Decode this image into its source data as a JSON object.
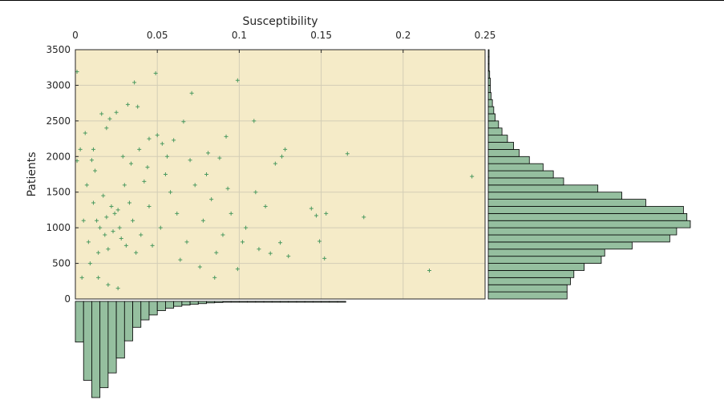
{
  "chart_data": {
    "type": "scatter",
    "title": "",
    "xlabel": "Susceptibility",
    "ylabel": "Patients",
    "xlim": [
      0,
      0.25
    ],
    "ylim": [
      0,
      3500
    ],
    "x_ticks": [
      "0",
      "0.05",
      "0.1",
      "0.15",
      "0.2",
      "0.25"
    ],
    "y_ticks": [
      "0",
      "500",
      "1000",
      "1500",
      "2000",
      "2500",
      "3000",
      "3500"
    ],
    "x_axis_position": "top",
    "grid": true,
    "legend": "none",
    "marker": "+",
    "colors": {
      "background": "#f5ebc8",
      "marker": "#4c9a60",
      "bar_fill": "#95bf9f",
      "bar_edge": "#000000",
      "grid": "#d3cdb6"
    },
    "points": [
      [
        0.001,
        3190
      ],
      [
        0.036,
        3040
      ],
      [
        0.049,
        3170
      ],
      [
        0.071,
        2890
      ],
      [
        0.099,
        3070
      ],
      [
        0.109,
        2500
      ],
      [
        0.166,
        2040
      ],
      [
        0.128,
        2100
      ],
      [
        0.242,
        1720
      ],
      [
        0.216,
        400
      ],
      [
        0.152,
        570
      ],
      [
        0.149,
        810
      ],
      [
        0.176,
        1150
      ],
      [
        0.153,
        1200
      ],
      [
        0.147,
        1170
      ],
      [
        0.144,
        1270
      ],
      [
        0.125,
        790
      ],
      [
        0.119,
        640
      ],
      [
        0.099,
        420
      ],
      [
        0.085,
        300
      ],
      [
        0.13,
        600
      ],
      [
        0.122,
        1900
      ],
      [
        0.126,
        2000
      ],
      [
        0.088,
        1980
      ],
      [
        0.081,
        2050
      ],
      [
        0.092,
        2280
      ],
      [
        0.066,
        2490
      ],
      [
        0.06,
        2230
      ],
      [
        0.053,
        2180
      ],
      [
        0.045,
        2250
      ],
      [
        0.038,
        2700
      ],
      [
        0.032,
        2730
      ],
      [
        0.025,
        2620
      ],
      [
        0.019,
        2400
      ],
      [
        0.016,
        2600
      ],
      [
        0.021,
        2530
      ],
      [
        0.006,
        2330
      ],
      [
        0.01,
        1950
      ],
      [
        0.001,
        1940
      ],
      [
        0.003,
        2100
      ],
      [
        0.007,
        1600
      ],
      [
        0.013,
        1100
      ],
      [
        0.018,
        900
      ],
      [
        0.022,
        1300
      ],
      [
        0.027,
        1000
      ],
      [
        0.031,
        750
      ],
      [
        0.014,
        650
      ],
      [
        0.009,
        500
      ],
      [
        0.004,
        300
      ],
      [
        0.017,
        1450
      ],
      [
        0.024,
        1200
      ],
      [
        0.03,
        1600
      ],
      [
        0.012,
        1800
      ],
      [
        0.02,
        700
      ],
      [
        0.035,
        1100
      ],
      [
        0.04,
        900
      ],
      [
        0.045,
        1300
      ],
      [
        0.052,
        1000
      ],
      [
        0.058,
        1500
      ],
      [
        0.062,
        1200
      ],
      [
        0.068,
        800
      ],
      [
        0.073,
        1600
      ],
      [
        0.078,
        1100
      ],
      [
        0.083,
        1400
      ],
      [
        0.09,
        900
      ],
      [
        0.095,
        1200
      ],
      [
        0.104,
        1000
      ],
      [
        0.11,
        1500
      ],
      [
        0.116,
        1300
      ],
      [
        0.112,
        700
      ],
      [
        0.015,
        1000
      ],
      [
        0.019,
        1150
      ],
      [
        0.023,
        950
      ],
      [
        0.026,
        1250
      ],
      [
        0.011,
        1350
      ],
      [
        0.008,
        800
      ],
      [
        0.005,
        1100
      ],
      [
        0.028,
        850
      ],
      [
        0.033,
        1350
      ],
      [
        0.037,
        650
      ],
      [
        0.042,
        1650
      ],
      [
        0.047,
        750
      ],
      [
        0.055,
        1750
      ],
      [
        0.064,
        550
      ],
      [
        0.07,
        1950
      ],
      [
        0.076,
        450
      ],
      [
        0.08,
        1750
      ],
      [
        0.086,
        650
      ],
      [
        0.093,
        1550
      ],
      [
        0.102,
        800
      ],
      [
        0.014,
        300
      ],
      [
        0.02,
        200
      ],
      [
        0.026,
        150
      ],
      [
        0.011,
        2100
      ],
      [
        0.029,
        2000
      ],
      [
        0.034,
        1900
      ],
      [
        0.039,
        2100
      ],
      [
        0.044,
        1850
      ],
      [
        0.05,
        2300
      ],
      [
        0.056,
        2000
      ]
    ],
    "x_histogram": {
      "bin_width": 0.005,
      "counts": [
        330,
        640,
        780,
        700,
        580,
        460,
        320,
        210,
        150,
        110,
        75,
        55,
        40,
        30,
        24,
        18,
        12,
        9,
        6,
        5,
        4,
        3,
        2,
        2,
        1,
        1,
        1,
        1,
        1,
        1,
        1,
        1,
        1,
        0,
        0,
        0,
        0,
        0,
        0,
        0,
        0,
        0,
        0,
        0,
        0,
        0,
        0,
        0,
        0,
        0
      ]
    },
    "y_histogram": {
      "bin_width": 100,
      "counts": [
        115,
        115,
        120,
        125,
        140,
        165,
        170,
        210,
        265,
        275,
        295,
        290,
        285,
        230,
        195,
        160,
        110,
        95,
        80,
        60,
        45,
        37,
        28,
        20,
        15,
        10,
        8,
        6,
        4,
        3,
        3,
        2,
        1,
        1,
        1
      ]
    }
  }
}
